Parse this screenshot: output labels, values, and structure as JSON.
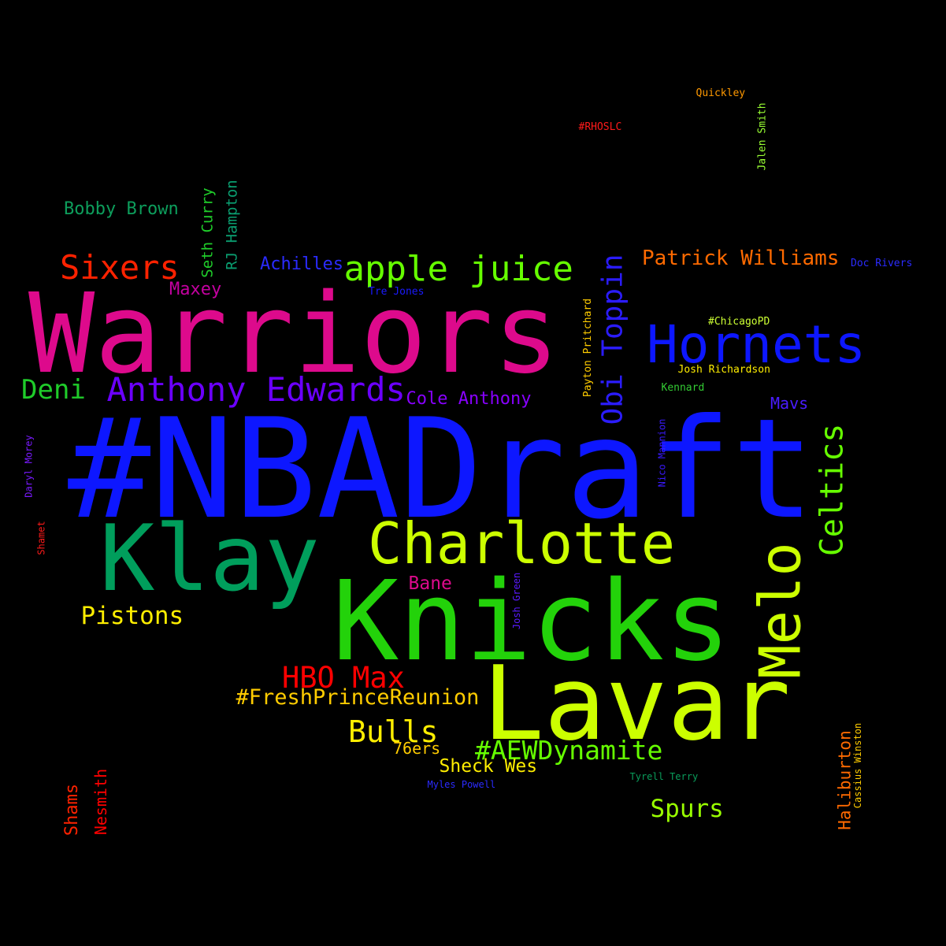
{
  "background_color": "#000000",
  "words": [
    {
      "id": "nbadraft",
      "text": "#NBADraft",
      "color": "#0d17ff",
      "vertical": false
    },
    {
      "id": "warriors",
      "text": "Warriors",
      "color": "#dd0a8c",
      "vertical": false
    },
    {
      "id": "knicks",
      "text": "Knicks",
      "color": "#23d20a",
      "vertical": false
    },
    {
      "id": "lavar",
      "text": "Lavar",
      "color": "#ccff00",
      "vertical": false
    },
    {
      "id": "klay",
      "text": "Klay",
      "color": "#009e5c",
      "vertical": false
    },
    {
      "id": "charlotte",
      "text": "Charlotte",
      "color": "#ccff00",
      "vertical": false
    },
    {
      "id": "hornets",
      "text": "Hornets",
      "color": "#0d17ff",
      "vertical": false
    },
    {
      "id": "melo",
      "text": "Melo",
      "color": "#ccff00",
      "vertical": true
    },
    {
      "id": "apple-juice",
      "text": "apple juice",
      "color": "#66ff00",
      "vertical": false
    },
    {
      "id": "anthony-edwards",
      "text": "Anthony Edwards",
      "color": "#6b00ff",
      "vertical": false
    },
    {
      "id": "sixers",
      "text": "Sixers",
      "color": "#ff2200",
      "vertical": false
    },
    {
      "id": "celtics",
      "text": "Celtics",
      "color": "#66ff00",
      "vertical": true
    },
    {
      "id": "obi-toppin",
      "text": "Obi Toppin",
      "color": "#2b1cff",
      "vertical": true
    },
    {
      "id": "hbo-max",
      "text": "HBO Max",
      "color": "#ff0000",
      "vertical": false
    },
    {
      "id": "fresh-prince",
      "text": "#FreshPrinceReunion",
      "color": "#ffcc00",
      "vertical": false
    },
    {
      "id": "bulls",
      "text": "Bulls",
      "color": "#ffee00",
      "vertical": false
    },
    {
      "id": "aew-dynamite",
      "text": "#AEWDynamite",
      "color": "#66ff00",
      "vertical": false
    },
    {
      "id": "patrick-williams",
      "text": "Patrick Williams",
      "color": "#ff6a00",
      "vertical": false
    },
    {
      "id": "deni",
      "text": "Deni",
      "color": "#1fcc2a",
      "vertical": false
    },
    {
      "id": "pistons",
      "text": "Pistons",
      "color": "#ffee00",
      "vertical": false
    },
    {
      "id": "spurs",
      "text": "Spurs",
      "color": "#99ff00",
      "vertical": false
    },
    {
      "id": "bobby-brown",
      "text": "Bobby Brown",
      "color": "#0d9e5c",
      "vertical": false
    },
    {
      "id": "cole-anthony",
      "text": "Cole Anthony",
      "color": "#8800ff",
      "vertical": false
    },
    {
      "id": "achilles",
      "text": "Achilles",
      "color": "#2b2bff",
      "vertical": false
    },
    {
      "id": "maxey",
      "text": "Maxey",
      "color": "#c400a0",
      "vertical": false
    },
    {
      "id": "bane",
      "text": "Bane",
      "color": "#dd0a8c",
      "vertical": false
    },
    {
      "id": "sheck-wes",
      "text": "Sheck Wes",
      "color": "#ffee00",
      "vertical": false
    },
    {
      "id": "76ers",
      "text": "76ers",
      "color": "#ffcc00",
      "vertical": false
    },
    {
      "id": "mavs",
      "text": "Mavs",
      "color": "#4a1cff",
      "vertical": false
    },
    {
      "id": "haliburton",
      "text": "Haliburton",
      "color": "#ff6a00",
      "vertical": true
    },
    {
      "id": "seth-curry",
      "text": "Seth Curry",
      "color": "#1fcc2a",
      "vertical": true
    },
    {
      "id": "rj-hampton",
      "text": "RJ Hampton",
      "color": "#0a9e70",
      "vertical": true
    },
    {
      "id": "shams",
      "text": "Shams",
      "color": "#ff2200",
      "vertical": true
    },
    {
      "id": "nesmith",
      "text": "Nesmith",
      "color": "#ff0000",
      "vertical": true
    },
    {
      "id": "doc-rivers",
      "text": "Doc Rivers",
      "color": "#2b2bff",
      "vertical": false
    },
    {
      "id": "chicagopd",
      "text": "#ChicagoPD",
      "color": "#ccff33",
      "vertical": false
    },
    {
      "id": "josh-richardson",
      "text": "Josh Richardson",
      "color": "#ffee00",
      "vertical": false
    },
    {
      "id": "kennard",
      "text": "Kennard",
      "color": "#33cc33",
      "vertical": false
    },
    {
      "id": "tre-jones",
      "text": "Tre Jones",
      "color": "#1a1aff",
      "vertical": false
    },
    {
      "id": "quickley",
      "text": "Quickley",
      "color": "#ff9900",
      "vertical": false
    },
    {
      "id": "rhoslc",
      "text": "#RHOSLC",
      "color": "#ff1a1a",
      "vertical": false
    },
    {
      "id": "jalen-smith",
      "text": "Jalen Smith",
      "color": "#99ff33",
      "vertical": true
    },
    {
      "id": "payton-pritchard",
      "text": "Payton Pritchard",
      "color": "#ffcc00",
      "vertical": true
    },
    {
      "id": "nico-mannion",
      "text": "Nico Mannion",
      "color": "#3a1aff",
      "vertical": true
    },
    {
      "id": "josh-green",
      "text": "Josh Green",
      "color": "#5a1aff",
      "vertical": true
    },
    {
      "id": "daryl-morey",
      "text": "Daryl Morey",
      "color": "#7a1aff",
      "vertical": true
    },
    {
      "id": "shamet",
      "text": "Shamet",
      "color": "#ff1a1a",
      "vertical": true
    },
    {
      "id": "myles-powell",
      "text": "Myles Powell",
      "color": "#2b2bff",
      "vertical": false
    },
    {
      "id": "tyrell-terry",
      "text": "Tyrell Terry",
      "color": "#0a9e5c",
      "vertical": false
    },
    {
      "id": "cassius-winston",
      "text": "Cassius Winston",
      "color": "#ffcc00",
      "vertical": true
    }
  ]
}
